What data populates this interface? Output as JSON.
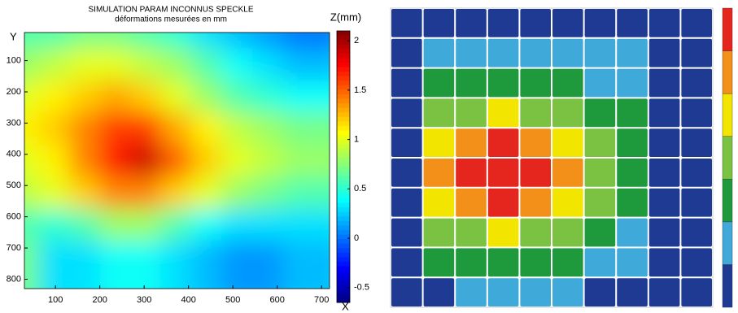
{
  "chart_data": [
    {
      "type": "heatmap",
      "title": "SIMULATION PARAM INCONNUS SPECKLE",
      "subtitle": "déformations mesurées en mm",
      "x_label": "X",
      "y_label": "Y",
      "colorbar_label": "Z(mm)",
      "x": [
        64,
        133,
        202,
        271,
        340,
        408,
        477,
        546,
        615,
        684
      ],
      "y": [
        61,
        164,
        267,
        369,
        472,
        574,
        677,
        779
      ],
      "z": [
        [
          0.6,
          0.6,
          0.7,
          0.7,
          0.6,
          0.5,
          0.3,
          0.2,
          0.1,
          0.0
        ],
        [
          0.8,
          0.9,
          1.0,
          1.0,
          0.9,
          0.8,
          0.6,
          0.4,
          0.3,
          0.2
        ],
        [
          1.0,
          1.1,
          1.2,
          1.3,
          1.2,
          1.0,
          0.8,
          0.6,
          0.5,
          0.4
        ],
        [
          1.1,
          1.2,
          1.4,
          1.6,
          1.6,
          1.3,
          1.1,
          0.9,
          0.8,
          0.7
        ],
        [
          1.0,
          1.1,
          1.4,
          1.7,
          1.9,
          1.5,
          1.2,
          1.0,
          0.9,
          0.8
        ],
        [
          0.9,
          1.0,
          1.2,
          1.4,
          1.4,
          1.2,
          1.0,
          0.8,
          0.7,
          0.6
        ],
        [
          0.6,
          0.5,
          0.6,
          0.8,
          0.8,
          0.6,
          0.4,
          0.3,
          0.3,
          0.3
        ],
        [
          0.7,
          0.3,
          0.3,
          0.4,
          0.4,
          0.3,
          0.2,
          0.1,
          0.1,
          0.2
        ]
      ],
      "xlim": [
        30,
        718
      ],
      "ylim": [
        10,
        830
      ],
      "xticks": [
        100,
        200,
        300,
        400,
        500,
        600,
        700
      ],
      "yticks": [
        100,
        200,
        300,
        400,
        500,
        600,
        700,
        800
      ],
      "zlim": [
        -0.65,
        2.1
      ],
      "zticks": [
        -0.5,
        0,
        0.5,
        1,
        1.5,
        2
      ]
    },
    {
      "type": "contour-map",
      "z": [
        [
          0.0,
          0.0,
          0.0,
          0.0,
          0.0,
          0.0,
          0.0,
          0.0,
          0.0,
          0.0
        ],
        [
          0.0,
          0.2,
          0.3,
          0.3,
          0.3,
          0.2,
          0.2,
          0.1,
          0.0,
          0.0
        ],
        [
          0.0,
          0.4,
          0.5,
          0.6,
          0.5,
          0.5,
          0.3,
          0.2,
          0.0,
          0.0
        ],
        [
          0.0,
          0.7,
          0.9,
          1.0,
          0.9,
          0.8,
          0.6,
          0.4,
          0.0,
          0.0
        ],
        [
          0.0,
          1.0,
          1.3,
          1.4,
          1.3,
          1.1,
          0.8,
          0.5,
          0.0,
          0.0
        ],
        [
          0.0,
          1.2,
          1.5,
          1.7,
          1.6,
          1.2,
          0.9,
          0.5,
          0.0,
          0.0
        ],
        [
          0.0,
          1.0,
          1.3,
          1.4,
          1.3,
          1.1,
          0.8,
          0.4,
          0.0,
          0.0
        ],
        [
          0.0,
          0.7,
          0.9,
          1.0,
          0.9,
          0.8,
          0.6,
          0.3,
          0.0,
          0.0
        ],
        [
          0.0,
          0.4,
          0.5,
          0.6,
          0.5,
          0.4,
          0.3,
          0.2,
          0.0,
          0.0
        ],
        [
          0.0,
          0.0,
          0.1,
          0.2,
          0.2,
          0.1,
          0.0,
          0.0,
          0.0,
          0.0
        ]
      ],
      "levels": [
        -0.1,
        0.1,
        0.4,
        0.7,
        1.0,
        1.2,
        1.4,
        1.8
      ],
      "colors": [
        "#1f3a93",
        "#3fa9d9",
        "#1e9a3c",
        "#7cc242",
        "#f2e600",
        "#f39019",
        "#e5261f"
      ]
    }
  ]
}
